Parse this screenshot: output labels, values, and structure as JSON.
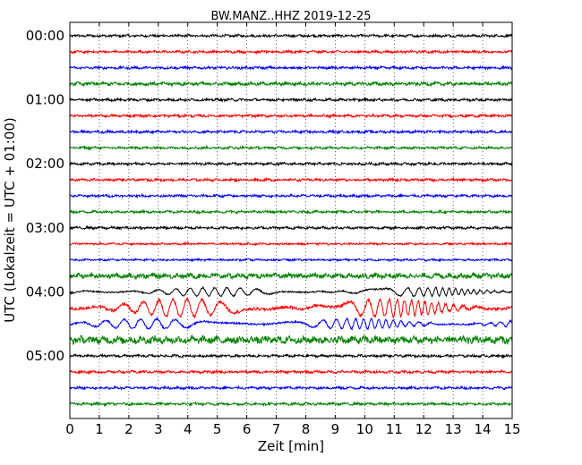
{
  "chart_data": {
    "type": "line",
    "title": "BW.MANZ..HHZ 2019-12-25",
    "xlabel": "Zeit  [min]",
    "ylabel": "UTC (Lokalzeit = UTC + 01:00)",
    "xlim": [
      0,
      15
    ],
    "x_ticks": [
      "0",
      "1",
      "2",
      "3",
      "4",
      "5",
      "6",
      "7",
      "8",
      "9",
      "10",
      "11",
      "12",
      "13",
      "14",
      "15"
    ],
    "y_ticks": [
      "00:00",
      "01:00",
      "02:00",
      "03:00",
      "04:00",
      "05:00"
    ],
    "grid": "vertical dotted",
    "trace_colors": [
      "#000000",
      "#ff0000",
      "#0000ff",
      "#008000"
    ],
    "traces": [
      {
        "start": "00:00",
        "amplitude": 0.15
      },
      {
        "start": "00:15",
        "amplitude": 0.15
      },
      {
        "start": "00:30",
        "amplitude": 0.15
      },
      {
        "start": "00:45",
        "amplitude": 0.2
      },
      {
        "start": "01:00",
        "amplitude": 0.15
      },
      {
        "start": "01:15",
        "amplitude": 0.15
      },
      {
        "start": "01:30",
        "amplitude": 0.15
      },
      {
        "start": "01:45",
        "amplitude": 0.15
      },
      {
        "start": "02:00",
        "amplitude": 0.15
      },
      {
        "start": "02:15",
        "amplitude": 0.15
      },
      {
        "start": "02:30",
        "amplitude": 0.15
      },
      {
        "start": "02:45",
        "amplitude": 0.15
      },
      {
        "start": "03:00",
        "amplitude": 0.15
      },
      {
        "start": "03:15",
        "amplitude": 0.12
      },
      {
        "start": "03:30",
        "amplitude": 0.12
      },
      {
        "start": "03:45",
        "amplitude": 0.3
      },
      {
        "start": "04:00",
        "amplitude": 0.6
      },
      {
        "start": "04:15",
        "amplitude": 1.2
      },
      {
        "start": "04:30",
        "amplitude": 0.7
      },
      {
        "start": "04:45",
        "amplitude": 0.45
      },
      {
        "start": "05:00",
        "amplitude": 0.15
      },
      {
        "start": "05:15",
        "amplitude": 0.15
      },
      {
        "start": "05:30",
        "amplitude": 0.15
      },
      {
        "start": "05:45",
        "amplitude": 0.15
      }
    ]
  }
}
